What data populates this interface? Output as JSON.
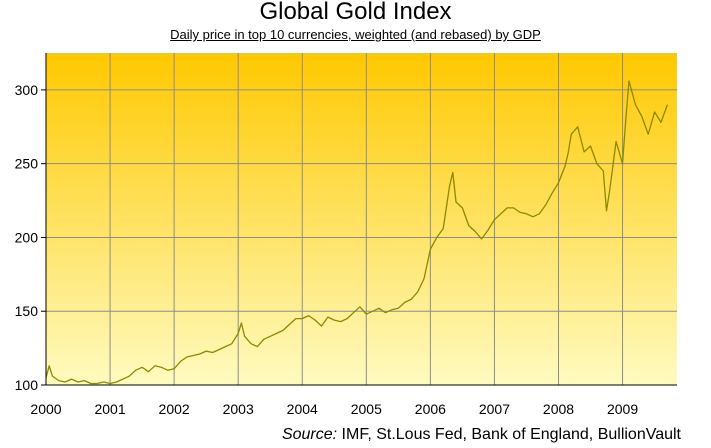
{
  "chart_data": {
    "type": "line",
    "title": "Global Gold Index",
    "subtitle": "Daily price in top 10 currencies, weighted (and rebased) by GDP",
    "source_label": "Source:",
    "source_text": "IMF, St.Lous Fed, Bank of England, BullionVault",
    "xlabel": "",
    "ylabel": "",
    "x_ticks": [
      "2000",
      "2001",
      "2002",
      "2003",
      "2004",
      "2005",
      "2006",
      "2007",
      "2008",
      "2009"
    ],
    "y_ticks": [
      100,
      150,
      200,
      250,
      300
    ],
    "xlim": [
      2000,
      2009.85
    ],
    "ylim": [
      100,
      325
    ],
    "grid": true,
    "colors": {
      "line": "#8a8a00",
      "bg_top": "#ffc800",
      "bg_bottom": "#fffbc0",
      "grid": "#8c8c8c"
    },
    "series": [
      {
        "x": [
          2000.0,
          2000.05,
          2000.1,
          2000.2,
          2000.3,
          2000.4,
          2000.5,
          2000.6,
          2000.7,
          2000.8,
          2000.9,
          2001.0,
          2001.1,
          2001.2,
          2001.3,
          2001.4,
          2001.5,
          2001.6,
          2001.7,
          2001.8,
          2001.9,
          2002.0,
          2002.1,
          2002.2,
          2002.3,
          2002.4,
          2002.5,
          2002.6,
          2002.7,
          2002.8,
          2002.9,
          2003.0,
          2003.05,
          2003.1,
          2003.2,
          2003.3,
          2003.4,
          2003.5,
          2003.6,
          2003.7,
          2003.8,
          2003.9,
          2004.0,
          2004.1,
          2004.2,
          2004.3,
          2004.4,
          2004.5,
          2004.6,
          2004.7,
          2004.8,
          2004.9,
          2005.0,
          2005.1,
          2005.2,
          2005.3,
          2005.4,
          2005.5,
          2005.6,
          2005.7,
          2005.8,
          2005.9,
          2006.0,
          2006.1,
          2006.2,
          2006.3,
          2006.35,
          2006.4,
          2006.5,
          2006.6,
          2006.7,
          2006.8,
          2006.9,
          2007.0,
          2007.1,
          2007.2,
          2007.3,
          2007.4,
          2007.5,
          2007.6,
          2007.7,
          2007.8,
          2007.9,
          2008.0,
          2008.1,
          2008.15,
          2008.2,
          2008.3,
          2008.4,
          2008.5,
          2008.6,
          2008.7,
          2008.75,
          2008.8,
          2008.9,
          2009.0,
          2009.05,
          2009.1,
          2009.2,
          2009.3,
          2009.4,
          2009.5,
          2009.6,
          2009.7
        ],
        "values": [
          105,
          113,
          106,
          103,
          102,
          104,
          102,
          103,
          101,
          101,
          102,
          101,
          102,
          104,
          106,
          110,
          112,
          109,
          113,
          112,
          110,
          111,
          116,
          119,
          120,
          121,
          123,
          122,
          124,
          126,
          128,
          135,
          142,
          133,
          128,
          126,
          131,
          133,
          135,
          137,
          141,
          145,
          145,
          147,
          144,
          140,
          146,
          144,
          143,
          145,
          149,
          153,
          148,
          150,
          152,
          149,
          151,
          152,
          156,
          158,
          163,
          172,
          192,
          200,
          206,
          235,
          244,
          224,
          220,
          208,
          204,
          199,
          205,
          212,
          216,
          220,
          220,
          217,
          216,
          214,
          216,
          222,
          230,
          237,
          248,
          257,
          270,
          275,
          258,
          262,
          250,
          245,
          218,
          232,
          265,
          250,
          280,
          306,
          290,
          282,
          270,
          285,
          278,
          290
        ]
      }
    ]
  }
}
